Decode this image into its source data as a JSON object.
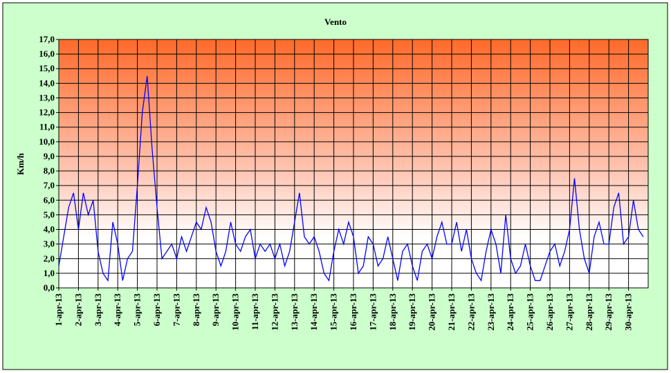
{
  "chart_data": {
    "type": "line",
    "title": "Vento",
    "y_label": "Km/h",
    "xlim": [
      0,
      30
    ],
    "xticks": [
      {
        "value": 0,
        "label": "1-apr-13"
      },
      {
        "value": 1,
        "label": "2-apr-13"
      },
      {
        "value": 2,
        "label": "3-apr-13"
      },
      {
        "value": 3,
        "label": "4-apr-13"
      },
      {
        "value": 4,
        "label": "5-apr-13"
      },
      {
        "value": 5,
        "label": "6-apr-13"
      },
      {
        "value": 6,
        "label": "7-apr-13"
      },
      {
        "value": 7,
        "label": "8-apr-13"
      },
      {
        "value": 8,
        "label": "9-apr-13"
      },
      {
        "value": 9,
        "label": "10-apr-13"
      },
      {
        "value": 10,
        "label": "11-apr-13"
      },
      {
        "value": 11,
        "label": "12-apr-13"
      },
      {
        "value": 12,
        "label": "13-apr-13"
      },
      {
        "value": 13,
        "label": "14-apr-13"
      },
      {
        "value": 14,
        "label": "15-apr-13"
      },
      {
        "value": 15,
        "label": "16-apr-13"
      },
      {
        "value": 16,
        "label": "17-apr-13"
      },
      {
        "value": 17,
        "label": "18-apr-13"
      },
      {
        "value": 18,
        "label": "19-apr-13"
      },
      {
        "value": 19,
        "label": "20-apr-13"
      },
      {
        "value": 20,
        "label": "21-apr-13"
      },
      {
        "value": 21,
        "label": "22-apr-13"
      },
      {
        "value": 22,
        "label": "23-apr-13"
      },
      {
        "value": 23,
        "label": "24-apr-13"
      },
      {
        "value": 24,
        "label": "25-apr-13"
      },
      {
        "value": 25,
        "label": "26-apr-13"
      },
      {
        "value": 26,
        "label": "27-apr-13"
      },
      {
        "value": 27,
        "label": "28-apr-13"
      },
      {
        "value": 28,
        "label": "29-apr-13"
      },
      {
        "value": 29,
        "label": "30-apr-13"
      }
    ],
    "ylim": [
      0,
      17
    ],
    "yticks": [
      {
        "value": 0,
        "label": "0,0"
      },
      {
        "value": 1,
        "label": "1,0"
      },
      {
        "value": 2,
        "label": "2,0"
      },
      {
        "value": 3,
        "label": "3,0"
      },
      {
        "value": 4,
        "label": "4,0"
      },
      {
        "value": 5,
        "label": "5,0"
      },
      {
        "value": 6,
        "label": "6,0"
      },
      {
        "value": 7,
        "label": "7,0"
      },
      {
        "value": 8,
        "label": "8,0"
      },
      {
        "value": 9,
        "label": "9,0"
      },
      {
        "value": 10,
        "label": "10,0"
      },
      {
        "value": 11,
        "label": "11,0"
      },
      {
        "value": 12,
        "label": "12,0"
      },
      {
        "value": 13,
        "label": "13,0"
      },
      {
        "value": 14,
        "label": "14,0"
      },
      {
        "value": 15,
        "label": "15,0"
      },
      {
        "value": 16,
        "label": "16,0"
      },
      {
        "value": 17,
        "label": "17,0"
      }
    ],
    "grid": true,
    "x": [
      0,
      0.25,
      0.5,
      0.75,
      1,
      1.25,
      1.5,
      1.75,
      2,
      2.25,
      2.5,
      2.75,
      3,
      3.25,
      3.5,
      3.75,
      4,
      4.25,
      4.5,
      4.75,
      5,
      5.25,
      5.5,
      5.75,
      6,
      6.25,
      6.5,
      6.75,
      7,
      7.25,
      7.5,
      7.75,
      8,
      8.25,
      8.5,
      8.75,
      9,
      9.25,
      9.5,
      9.75,
      10,
      10.25,
      10.5,
      10.75,
      11,
      11.25,
      11.5,
      11.75,
      12,
      12.25,
      12.5,
      12.75,
      13,
      13.25,
      13.5,
      13.75,
      14,
      14.25,
      14.5,
      14.75,
      15,
      15.25,
      15.5,
      15.75,
      16,
      16.25,
      16.5,
      16.75,
      17,
      17.25,
      17.5,
      17.75,
      18,
      18.25,
      18.5,
      18.75,
      19,
      19.25,
      19.5,
      19.75,
      20,
      20.25,
      20.5,
      20.75,
      21,
      21.25,
      21.5,
      21.75,
      22,
      22.25,
      22.5,
      22.75,
      23,
      23.25,
      23.5,
      23.75,
      24,
      24.25,
      24.5,
      24.75,
      25,
      25.25,
      25.5,
      25.75,
      26,
      26.25,
      26.5,
      26.75,
      27,
      27.25,
      27.5,
      27.75,
      28,
      28.25,
      28.5,
      28.75,
      29,
      29.25,
      29.5,
      29.75
    ],
    "series": [
      {
        "name": "Vento",
        "color": "#0000ff",
        "values": [
          1.5,
          3.5,
          5.5,
          6.5,
          4.0,
          6.5,
          5.0,
          6.0,
          2.5,
          1.0,
          0.5,
          4.5,
          3.0,
          0.5,
          2.0,
          2.5,
          7.0,
          12.0,
          14.5,
          9.5,
          5.5,
          2.0,
          2.5,
          3.0,
          2.0,
          3.5,
          2.5,
          3.5,
          4.5,
          4.0,
          5.5,
          4.5,
          2.5,
          1.5,
          2.5,
          4.5,
          3.0,
          2.5,
          3.5,
          4.0,
          2.0,
          3.0,
          2.5,
          3.0,
          2.0,
          3.0,
          1.5,
          2.5,
          4.5,
          6.5,
          3.5,
          3.0,
          3.5,
          2.5,
          1.0,
          0.5,
          2.5,
          4.0,
          3.0,
          4.5,
          3.5,
          1.0,
          1.5,
          3.5,
          3.0,
          1.5,
          2.0,
          3.5,
          2.0,
          0.5,
          2.5,
          3.0,
          1.5,
          0.5,
          2.5,
          3.0,
          2.0,
          3.5,
          4.5,
          3.0,
          3.0,
          4.5,
          2.5,
          4.0,
          2.0,
          1.0,
          0.5,
          2.5,
          4.0,
          3.0,
          1.0,
          5.0,
          2.0,
          1.0,
          1.5,
          3.0,
          1.5,
          0.5,
          0.5,
          1.5,
          2.5,
          3.0,
          1.5,
          2.5,
          4.0,
          7.5,
          4.0,
          2.0,
          1.0,
          3.5,
          4.5,
          3.0,
          3.0,
          5.5,
          6.5,
          3.0,
          3.5,
          6.0,
          4.0,
          3.5
        ]
      }
    ]
  }
}
